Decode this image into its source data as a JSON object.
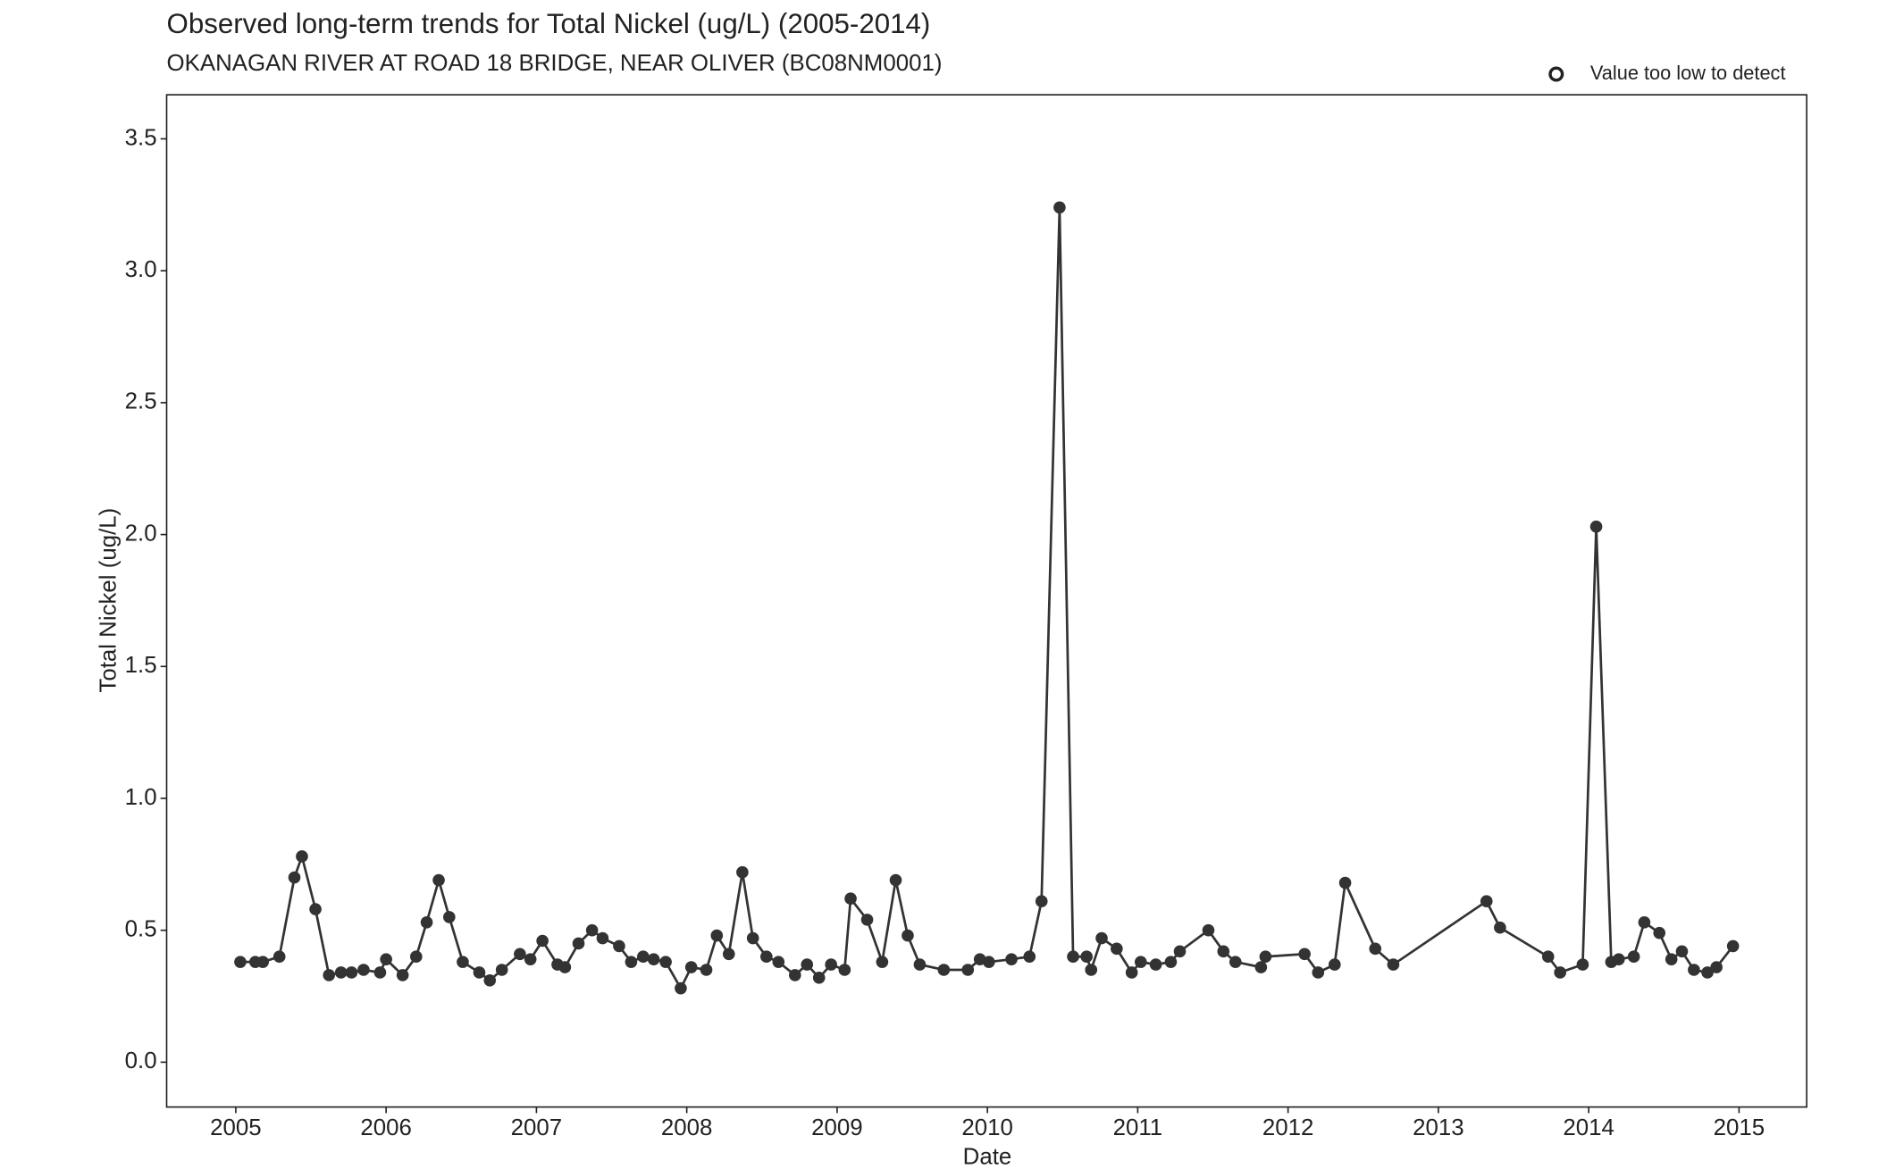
{
  "chart_data": {
    "type": "line",
    "title": "Observed long-term trends for Total Nickel (ug/L) (2005-2014)",
    "subtitle": "OKANAGAN RIVER AT ROAD 18 BRIDGE, NEAR OLIVER (BC08NM0001)",
    "x_label": "Date",
    "y_label": "Total Nickel (ug/L)",
    "legend": [
      "Value too low to detect"
    ],
    "xlim": [
      2004.54,
      2015.45
    ],
    "xticks": [
      2005,
      2006,
      2007,
      2008,
      2009,
      2010,
      2011,
      2012,
      2013,
      2014,
      2015
    ],
    "ylim": [
      -0.17,
      3.667
    ],
    "yticks": [
      {
        "value": 0,
        "label": "0.0"
      },
      0.5,
      {
        "value": 1,
        "label": "1.0"
      },
      1.5,
      {
        "value": 2,
        "label": "2.0"
      },
      2.5,
      {
        "value": 3,
        "label": "3.0"
      },
      3.5
    ],
    "grid": false,
    "series": [
      {
        "name": "Total Nickel (ug/L)",
        "color": "#333333",
        "x": [
          2005.03,
          2005.13,
          2005.18,
          2005.29,
          2005.39,
          2005.44,
          2005.53,
          2005.62,
          2005.7,
          2005.77,
          2005.85,
          2005.96,
          2006.0,
          2006.11,
          2006.2,
          2006.27,
          2006.35,
          2006.42,
          2006.51,
          2006.62,
          2006.69,
          2006.77,
          2006.89,
          2006.96,
          2007.04,
          2007.14,
          2007.19,
          2007.28,
          2007.37,
          2007.44,
          2007.55,
          2007.63,
          2007.71,
          2007.78,
          2007.86,
          2007.96,
          2008.03,
          2008.13,
          2008.2,
          2008.28,
          2008.37,
          2008.44,
          2008.53,
          2008.61,
          2008.72,
          2008.8,
          2008.88,
          2008.96,
          2009.05,
          2009.09,
          2009.2,
          2009.3,
          2009.39,
          2009.47,
          2009.55,
          2009.71,
          2009.87,
          2009.95,
          2010.01,
          2010.16,
          2010.28,
          2010.36,
          2010.48,
          2010.57,
          2010.66,
          2010.69,
          2010.76,
          2010.86,
          2010.96,
          2011.02,
          2011.12,
          2011.22,
          2011.28,
          2011.47,
          2011.57,
          2011.65,
          2011.82,
          2011.85,
          2012.11,
          2012.2,
          2012.31,
          2012.38,
          2012.58,
          2012.7,
          2013.32,
          2013.41,
          2013.73,
          2013.81,
          2013.96,
          2014.05,
          2014.15,
          2014.2,
          2014.3,
          2014.37,
          2014.47,
          2014.55,
          2014.62,
          2014.7,
          2014.79,
          2014.85,
          2014.96
        ],
        "values": [
          0.38,
          0.38,
          0.38,
          0.4,
          0.7,
          0.78,
          0.58,
          0.33,
          0.34,
          0.34,
          0.35,
          0.34,
          0.39,
          0.33,
          0.4,
          0.53,
          0.69,
          0.55,
          0.38,
          0.34,
          0.31,
          0.35,
          0.41,
          0.39,
          0.46,
          0.37,
          0.36,
          0.45,
          0.5,
          0.47,
          0.44,
          0.38,
          0.4,
          0.39,
          0.38,
          0.28,
          0.36,
          0.35,
          0.48,
          0.41,
          0.72,
          0.47,
          0.4,
          0.38,
          0.33,
          0.37,
          0.32,
          0.37,
          0.35,
          0.62,
          0.54,
          0.38,
          0.69,
          0.48,
          0.37,
          0.35,
          0.35,
          0.39,
          0.38,
          0.39,
          0.4,
          0.61,
          3.24,
          0.4,
          0.4,
          0.35,
          0.47,
          0.43,
          0.34,
          0.38,
          0.37,
          0.38,
          0.42,
          0.5,
          0.42,
          0.38,
          0.36,
          0.4,
          0.41,
          0.34,
          0.37,
          0.68,
          0.43,
          0.37,
          0.61,
          0.51,
          0.4,
          0.34,
          0.37,
          2.03,
          0.38,
          0.39,
          0.4,
          0.53,
          0.49,
          0.39,
          0.42,
          0.35,
          0.34,
          0.36,
          0.44
        ]
      }
    ]
  }
}
